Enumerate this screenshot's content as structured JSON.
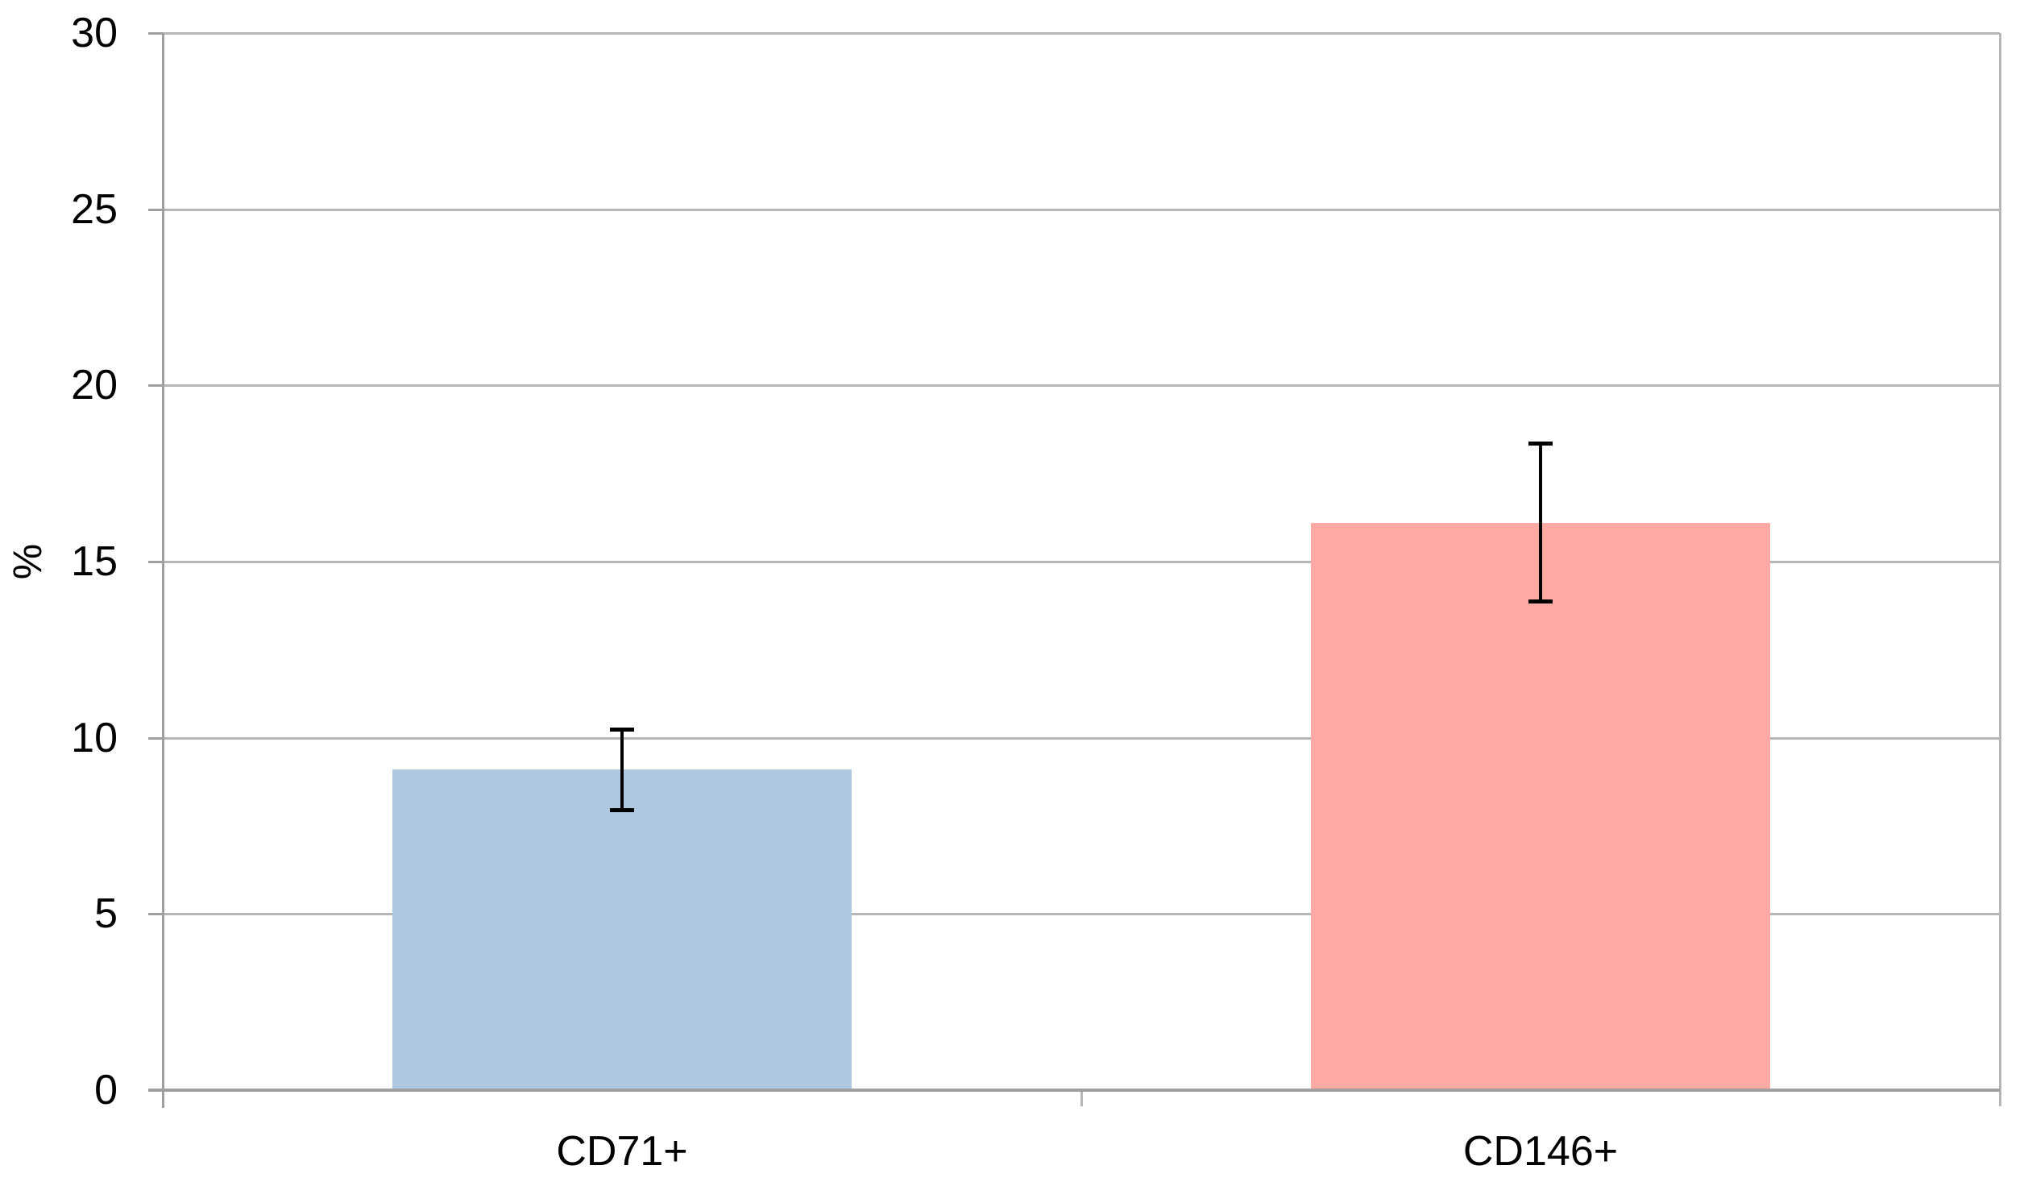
{
  "chart_data": {
    "type": "bar",
    "title": "",
    "xlabel": "",
    "ylabel": "%",
    "categories": [
      "CD71+",
      "CD146+"
    ],
    "values": [
      9.1,
      16.1
    ],
    "error_bars": [
      1.2,
      2.3
    ],
    "error_upper": [
      10.3,
      18.4
    ],
    "error_lower": [
      7.9,
      13.8
    ],
    "ylim": [
      0,
      30
    ],
    "ytick_interval": 5,
    "yticks": [
      0,
      5,
      10,
      15,
      20,
      25,
      30
    ],
    "grid": true,
    "legend_position": "none",
    "bar_colors": [
      "#afc8e1",
      "#fea9a4"
    ],
    "gridline_color": "#b6b6b6",
    "axis_color": "#9f9f9f",
    "error_bar_color": "#000000",
    "background_color": "#ffffff",
    "text_color": "#000000"
  }
}
